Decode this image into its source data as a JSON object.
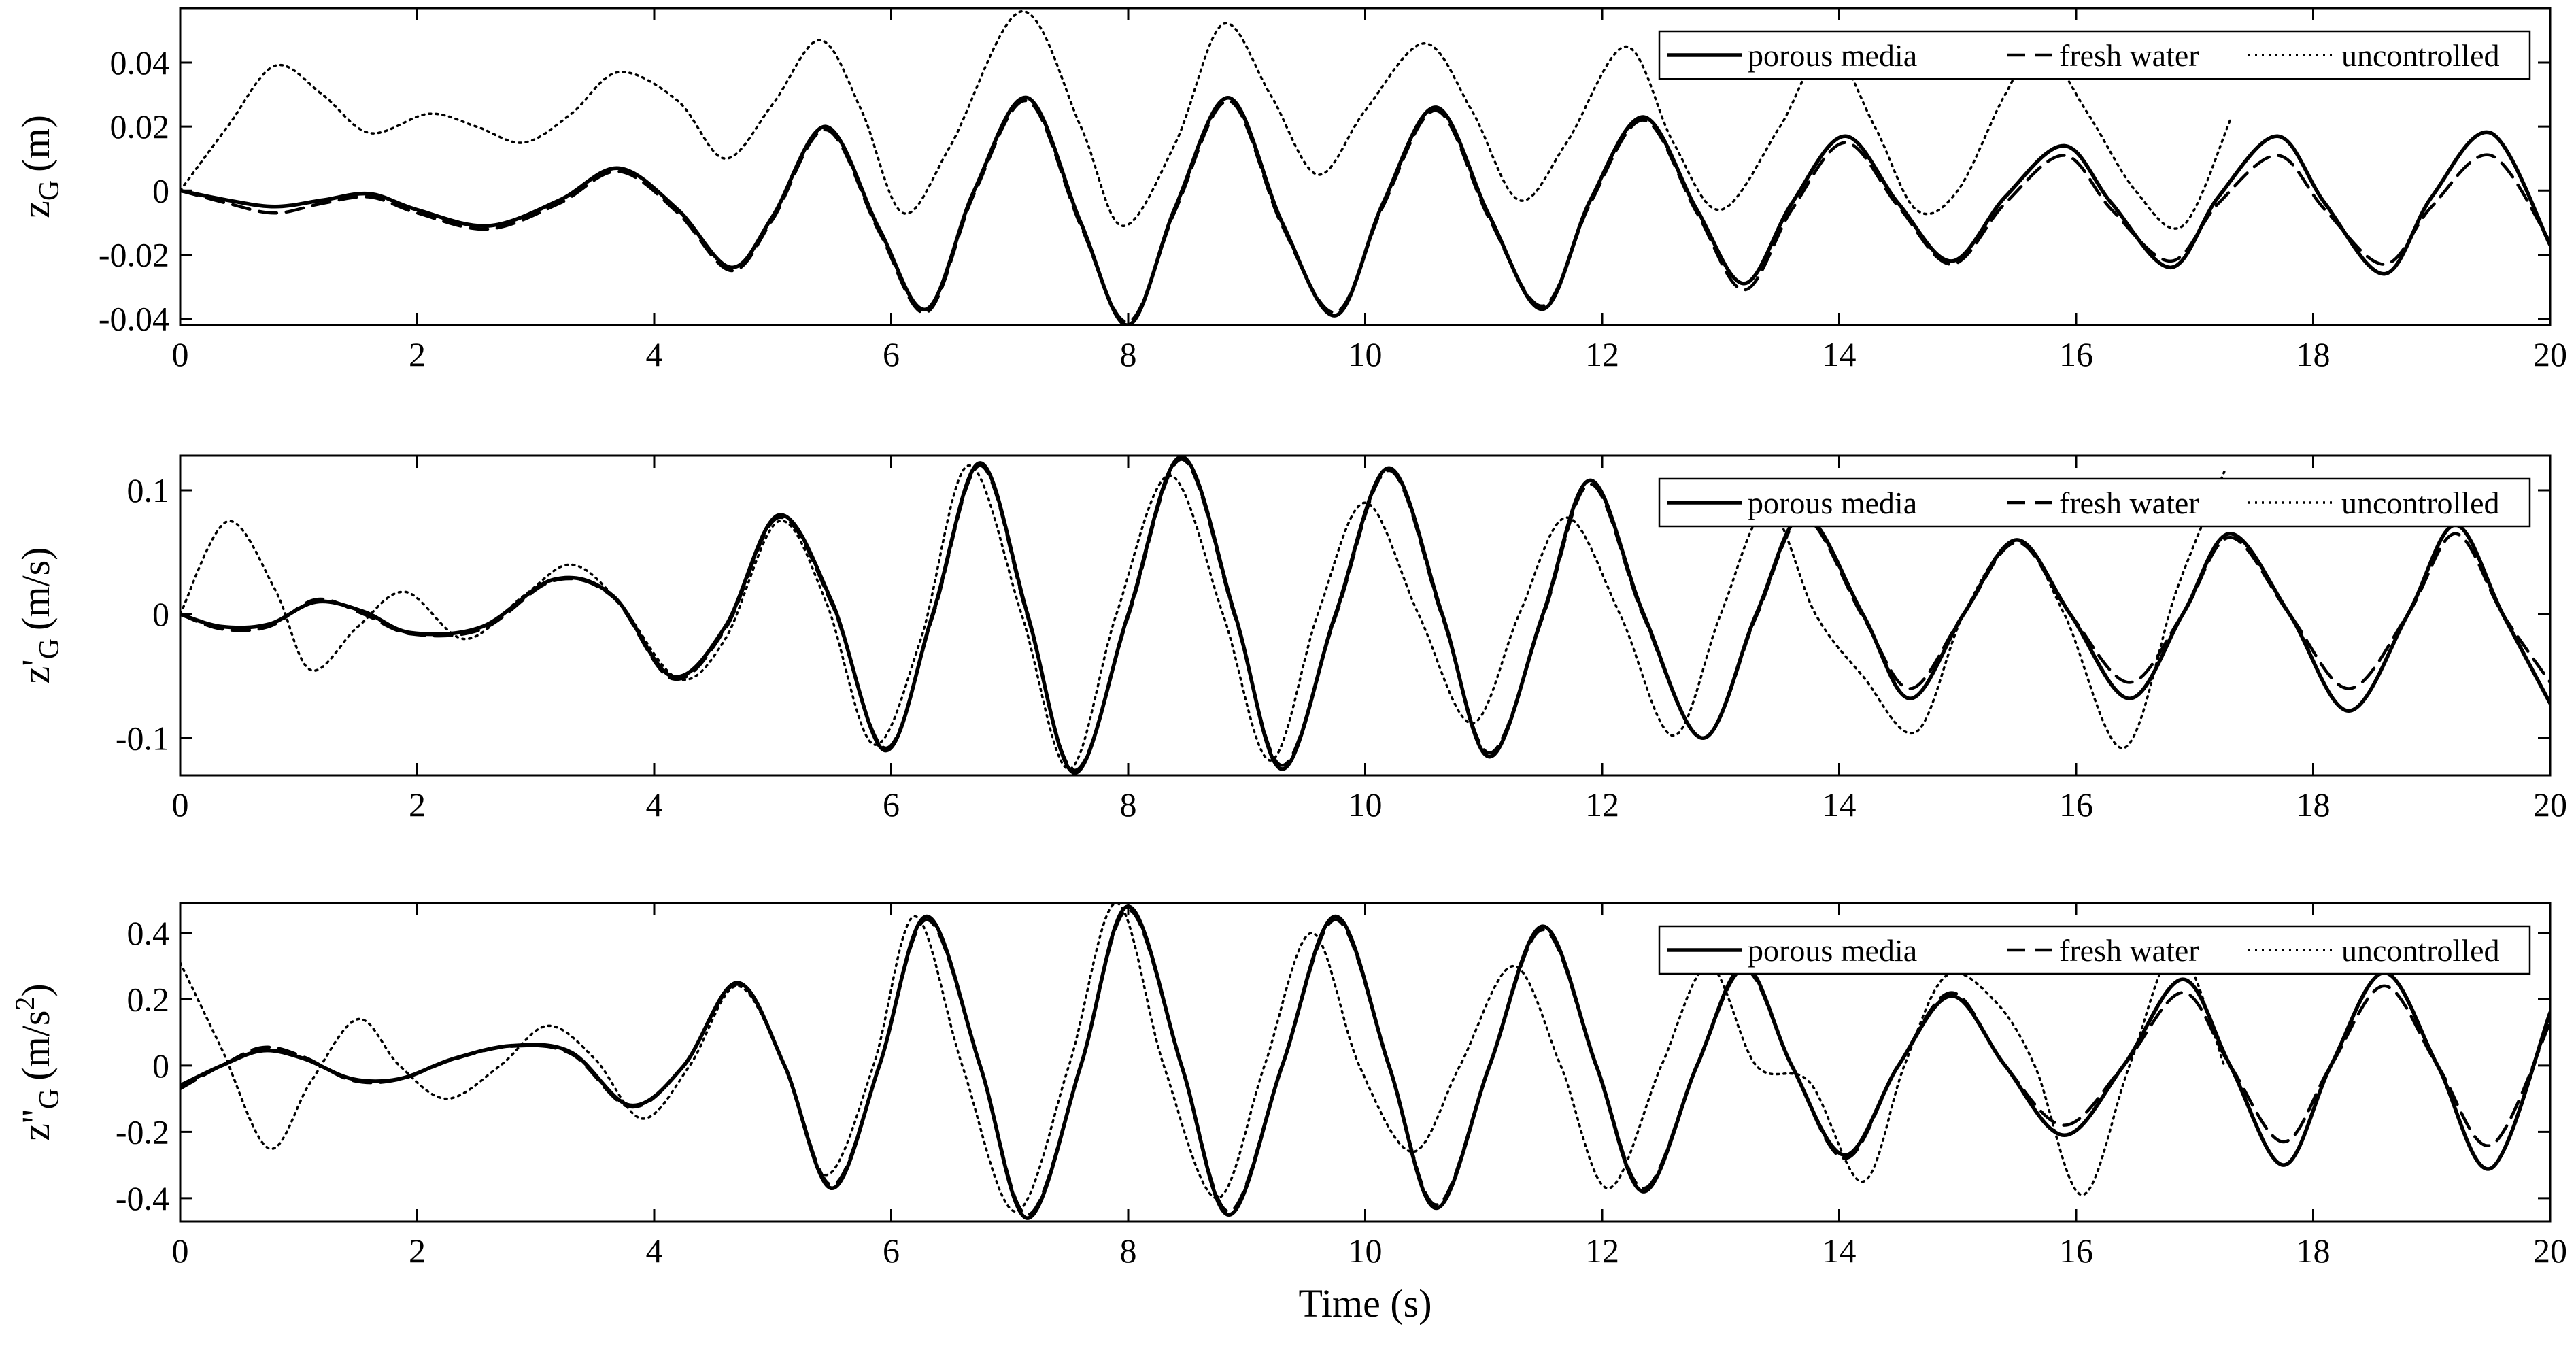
{
  "chart_data": [
    {
      "type": "line",
      "xlabel": "",
      "ylabel": {
        "base": "z",
        "prime": "",
        "sub": "G",
        "unit": "(m)",
        "sup": ""
      },
      "xlim": [
        0,
        20
      ],
      "ylim": [
        -0.042,
        0.057
      ],
      "xticks": [
        0,
        2,
        4,
        6,
        8,
        10,
        12,
        14,
        16,
        18,
        20
      ],
      "xtick_labels": [
        "0",
        "2",
        "4",
        "6",
        "8",
        "10",
        "12",
        "14",
        "16",
        "18",
        "20"
      ],
      "yticks": [
        -0.04,
        -0.02,
        0,
        0.02,
        0.04
      ],
      "ytick_labels": [
        "-0.04",
        "-0.02",
        "0",
        "0.02",
        "0.04"
      ],
      "legend": {
        "placement": "top-right"
      },
      "series": [
        {
          "name": "porous media",
          "style": "solid",
          "x": [
            0,
            0.4,
            0.8,
            1.2,
            1.6,
            2.0,
            2.6,
            3.2,
            3.7,
            4.2,
            4.65,
            5.0,
            5.45,
            5.9,
            6.3,
            6.7,
            7.15,
            7.6,
            8.0,
            8.4,
            8.85,
            9.3,
            9.75,
            10.15,
            10.6,
            11.05,
            11.5,
            11.9,
            12.35,
            12.8,
            13.2,
            13.6,
            14.05,
            14.5,
            14.95,
            15.4,
            15.9,
            16.3,
            16.8,
            17.2,
            17.7,
            18.1,
            18.6,
            19.0,
            19.5,
            20.0
          ],
          "y": [
            0,
            -0.003,
            -0.005,
            -0.003,
            -0.001,
            -0.006,
            -0.011,
            -0.003,
            0.007,
            -0.006,
            -0.024,
            -0.008,
            0.02,
            -0.012,
            -0.037,
            0.0,
            0.029,
            -0.01,
            -0.042,
            -0.005,
            0.029,
            -0.01,
            -0.039,
            -0.004,
            0.026,
            -0.008,
            -0.037,
            -0.003,
            0.023,
            -0.006,
            -0.029,
            -0.004,
            0.017,
            -0.004,
            -0.022,
            -0.002,
            0.014,
            -0.004,
            -0.024,
            -0.002,
            0.017,
            -0.004,
            -0.026,
            -0.002,
            0.018,
            -0.017
          ]
        },
        {
          "name": "fresh water",
          "style": "dashed",
          "x": [
            0,
            0.4,
            0.8,
            1.2,
            1.6,
            2.0,
            2.6,
            3.2,
            3.7,
            4.2,
            4.65,
            5.0,
            5.45,
            5.9,
            6.3,
            6.7,
            7.15,
            7.6,
            8.0,
            8.4,
            8.85,
            9.3,
            9.75,
            10.15,
            10.6,
            11.05,
            11.5,
            11.9,
            12.35,
            12.8,
            13.2,
            13.6,
            14.05,
            14.5,
            14.95,
            15.4,
            15.9,
            16.3,
            16.8,
            17.2,
            17.7,
            18.1,
            18.6,
            19.0,
            19.5,
            20.0
          ],
          "y": [
            0,
            -0.004,
            -0.007,
            -0.004,
            -0.002,
            -0.007,
            -0.012,
            -0.004,
            0.006,
            -0.007,
            -0.025,
            -0.009,
            0.019,
            -0.013,
            -0.038,
            -0.001,
            0.028,
            -0.011,
            -0.041,
            -0.006,
            0.028,
            -0.011,
            -0.038,
            -0.005,
            0.025,
            -0.009,
            -0.036,
            -0.004,
            0.022,
            -0.007,
            -0.031,
            -0.006,
            0.015,
            -0.005,
            -0.023,
            -0.004,
            0.011,
            -0.006,
            -0.022,
            -0.004,
            0.011,
            -0.006,
            -0.023,
            -0.005,
            0.011,
            -0.016
          ]
        },
        {
          "name": "uncontrolled",
          "style": "dotted",
          "x": [
            0,
            0.4,
            0.8,
            1.2,
            1.6,
            2.1,
            2.5,
            2.9,
            3.3,
            3.7,
            4.2,
            4.6,
            5.0,
            5.4,
            5.75,
            6.1,
            6.5,
            7.1,
            7.6,
            7.95,
            8.4,
            8.8,
            9.2,
            9.6,
            10.0,
            10.5,
            10.9,
            11.3,
            11.7,
            12.2,
            12.6,
            13.0,
            13.5,
            13.9,
            14.3,
            14.65,
            15.0,
            15.4,
            15.7,
            16.1,
            16.5,
            16.9,
            17.3
          ],
          "y": [
            0,
            0.02,
            0.039,
            0.03,
            0.018,
            0.024,
            0.02,
            0.015,
            0.024,
            0.037,
            0.028,
            0.01,
            0.027,
            0.047,
            0.025,
            -0.007,
            0.014,
            0.056,
            0.02,
            -0.011,
            0.015,
            0.052,
            0.03,
            0.005,
            0.025,
            0.046,
            0.025,
            -0.003,
            0.015,
            0.045,
            0.015,
            -0.006,
            0.02,
            0.045,
            0.02,
            -0.006,
            0.0,
            0.03,
            0.045,
            0.024,
            0.0,
            -0.011,
            0.022
          ]
        }
      ]
    },
    {
      "type": "line",
      "xlabel": "",
      "ylabel": {
        "base": "z",
        "prime": "'",
        "sub": "G",
        "unit": "(m/s)",
        "sup": ""
      },
      "xlim": [
        0,
        20
      ],
      "ylim": [
        -0.13,
        0.128
      ],
      "xticks": [
        0,
        2,
        4,
        6,
        8,
        10,
        12,
        14,
        16,
        18,
        20
      ],
      "xtick_labels": [
        "0",
        "2",
        "4",
        "6",
        "8",
        "10",
        "12",
        "14",
        "16",
        "18",
        "20"
      ],
      "yticks": [
        -0.1,
        0,
        0.1
      ],
      "ytick_labels": [
        "-0.1",
        "0",
        "0.1"
      ],
      "legend": {
        "placement": "top-right"
      },
      "series": [
        {
          "name": "porous media",
          "style": "solid",
          "x": [
            0,
            0.35,
            0.75,
            1.15,
            1.55,
            1.95,
            2.55,
            3.15,
            3.65,
            4.15,
            4.6,
            5.05,
            5.5,
            5.95,
            6.35,
            6.75,
            7.15,
            7.55,
            8.0,
            8.45,
            8.9,
            9.3,
            9.75,
            10.2,
            10.65,
            11.05,
            11.5,
            11.9,
            12.35,
            12.85,
            13.3,
            13.7,
            14.2,
            14.6,
            15.05,
            15.5,
            15.95,
            16.45,
            16.9,
            17.3,
            17.8,
            18.3,
            18.8,
            19.2,
            19.6,
            20.0
          ],
          "y": [
            0,
            -0.01,
            -0.008,
            0.01,
            0.002,
            -0.015,
            -0.01,
            0.028,
            0.015,
            -0.05,
            -0.01,
            0.08,
            0.01,
            -0.11,
            0.0,
            0.122,
            0.0,
            -0.128,
            0.0,
            0.127,
            0.0,
            -0.125,
            0.0,
            0.118,
            0.0,
            -0.115,
            0.0,
            0.108,
            0.0,
            -0.1,
            0.0,
            0.08,
            0.0,
            -0.068,
            0.0,
            0.06,
            0.0,
            -0.068,
            0.0,
            0.065,
            0.0,
            -0.078,
            0.0,
            0.072,
            0.0,
            -0.072
          ]
        },
        {
          "name": "fresh water",
          "style": "dashed",
          "x": [
            0,
            0.35,
            0.75,
            1.15,
            1.55,
            1.95,
            2.55,
            3.15,
            3.65,
            4.15,
            4.6,
            5.05,
            5.5,
            5.95,
            6.35,
            6.75,
            7.15,
            7.55,
            8.0,
            8.45,
            8.9,
            9.3,
            9.75,
            10.2,
            10.65,
            11.05,
            11.5,
            11.9,
            12.35,
            12.85,
            13.3,
            13.7,
            14.2,
            14.6,
            15.05,
            15.5,
            15.95,
            16.45,
            16.9,
            17.3,
            17.8,
            18.3,
            18.8,
            19.2,
            19.6,
            20.0
          ],
          "y": [
            0,
            -0.012,
            -0.01,
            0.012,
            0.0,
            -0.016,
            -0.012,
            0.027,
            0.014,
            -0.052,
            -0.012,
            0.078,
            0.008,
            -0.108,
            -0.002,
            0.12,
            -0.002,
            -0.126,
            -0.002,
            0.125,
            -0.002,
            -0.122,
            -0.002,
            0.116,
            -0.002,
            -0.112,
            -0.002,
            0.105,
            -0.002,
            -0.1,
            -0.002,
            0.078,
            -0.002,
            -0.06,
            0.0,
            0.058,
            0.0,
            -0.055,
            0.0,
            0.062,
            0.0,
            -0.06,
            0.0,
            0.065,
            0.0,
            -0.055
          ]
        },
        {
          "name": "uncontrolled",
          "style": "dotted",
          "x": [
            0,
            0.4,
            0.8,
            1.1,
            1.5,
            1.9,
            2.4,
            2.9,
            3.3,
            3.7,
            4.2,
            4.6,
            5.05,
            5.45,
            5.85,
            6.25,
            6.65,
            7.1,
            7.5,
            7.9,
            8.35,
            8.8,
            9.2,
            9.6,
            10.0,
            10.45,
            10.9,
            11.3,
            11.7,
            12.15,
            12.6,
            13.0,
            13.4,
            13.8,
            14.2,
            14.65,
            15.05,
            15.5,
            15.9,
            16.4,
            16.85,
            17.25
          ],
          "y": [
            0,
            0.075,
            0.02,
            -0.045,
            -0.01,
            0.018,
            -0.02,
            0.015,
            0.04,
            0.01,
            -0.052,
            -0.02,
            0.075,
            0.01,
            -0.105,
            -0.02,
            0.12,
            0.0,
            -0.125,
            0.0,
            0.112,
            0.0,
            -0.118,
            0.0,
            0.09,
            0.0,
            -0.088,
            0.0,
            0.078,
            0.0,
            -0.098,
            0.0,
            0.085,
            0.0,
            -0.05,
            -0.095,
            0.0,
            0.06,
            0.0,
            -0.108,
            0.02,
            0.115
          ]
        }
      ]
    },
    {
      "type": "line",
      "xlabel": "Time (s)",
      "ylabel": {
        "base": "z",
        "prime": "''",
        "sub": "G",
        "unit": "(m/s",
        "sup": "2",
        "unit_end": ")"
      },
      "xlim": [
        0,
        20
      ],
      "ylim": [
        -0.47,
        0.49
      ],
      "xticks": [
        0,
        2,
        4,
        6,
        8,
        10,
        12,
        14,
        16,
        18,
        20
      ],
      "xtick_labels": [
        "0",
        "2",
        "4",
        "6",
        "8",
        "10",
        "12",
        "14",
        "16",
        "18",
        "20"
      ],
      "yticks": [
        -0.4,
        -0.2,
        0,
        0.2,
        0.4
      ],
      "ytick_labels": [
        "-0.4",
        "-0.2",
        "0",
        "0.2",
        "0.4"
      ],
      "legend": {
        "placement": "top-right"
      },
      "series": [
        {
          "name": "porous media",
          "style": "solid",
          "x": [
            0,
            0.35,
            0.7,
            1.05,
            1.45,
            1.85,
            2.3,
            2.8,
            3.3,
            3.8,
            4.25,
            4.7,
            5.1,
            5.5,
            5.9,
            6.3,
            6.75,
            7.15,
            7.6,
            8.0,
            8.45,
            8.85,
            9.3,
            9.75,
            10.2,
            10.6,
            11.05,
            11.5,
            11.95,
            12.35,
            12.8,
            13.2,
            13.6,
            14.05,
            14.5,
            14.95,
            15.4,
            15.9,
            16.4,
            16.9,
            17.3,
            17.75,
            18.15,
            18.6,
            19.05,
            19.5,
            20.0
          ],
          "y": [
            -0.06,
            0.0,
            0.045,
            0.02,
            -0.04,
            -0.04,
            0.02,
            0.06,
            0.04,
            -0.12,
            0.0,
            0.25,
            0.0,
            -0.37,
            0.0,
            0.45,
            0.0,
            -0.46,
            0.0,
            0.48,
            0.0,
            -0.45,
            0.0,
            0.45,
            0.0,
            -0.43,
            0.0,
            0.42,
            0.0,
            -0.38,
            0.0,
            0.3,
            0.0,
            -0.27,
            0.0,
            0.21,
            0.0,
            -0.21,
            0.0,
            0.26,
            0.0,
            -0.3,
            0.0,
            0.28,
            0.0,
            -0.31,
            0.16
          ]
        },
        {
          "name": "fresh water",
          "style": "dashed",
          "x": [
            0,
            0.35,
            0.7,
            1.05,
            1.45,
            1.85,
            2.3,
            2.8,
            3.3,
            3.8,
            4.25,
            4.7,
            5.1,
            5.5,
            5.9,
            6.3,
            6.75,
            7.15,
            7.6,
            8.0,
            8.45,
            8.85,
            9.3,
            9.75,
            10.2,
            10.6,
            11.05,
            11.5,
            11.95,
            12.35,
            12.8,
            13.2,
            13.6,
            14.05,
            14.5,
            14.95,
            15.4,
            15.9,
            16.4,
            16.9,
            17.3,
            17.75,
            18.15,
            18.6,
            19.05,
            19.5,
            20.0
          ],
          "y": [
            -0.07,
            0.0,
            0.055,
            0.025,
            -0.045,
            -0.042,
            0.018,
            0.058,
            0.035,
            -0.125,
            0.0,
            0.245,
            0.0,
            -0.36,
            0.0,
            0.44,
            0.0,
            -0.45,
            0.0,
            0.47,
            0.0,
            -0.44,
            0.0,
            0.44,
            0.0,
            -0.42,
            0.0,
            0.41,
            0.0,
            -0.37,
            0.0,
            0.29,
            0.0,
            -0.28,
            0.0,
            0.22,
            0.0,
            -0.18,
            0.0,
            0.22,
            0.0,
            -0.23,
            0.0,
            0.24,
            0.0,
            -0.24,
            0.13
          ]
        },
        {
          "name": "uncontrolled",
          "style": "dotted",
          "x": [
            0,
            0.35,
            0.75,
            1.1,
            1.5,
            1.85,
            2.25,
            2.7,
            3.1,
            3.5,
            3.9,
            4.3,
            4.7,
            5.1,
            5.45,
            5.85,
            6.2,
            6.6,
            7.05,
            7.5,
            7.9,
            8.3,
            8.75,
            9.15,
            9.55,
            9.95,
            10.4,
            10.8,
            11.25,
            11.65,
            12.05,
            12.5,
            12.9,
            13.3,
            13.75,
            14.2,
            14.55,
            14.9,
            15.3,
            15.65,
            16.05,
            16.45,
            16.85,
            17.25
          ],
          "y": [
            0.31,
            0.05,
            -0.25,
            -0.05,
            0.14,
            0.0,
            -0.1,
            0.0,
            0.12,
            0.02,
            -0.16,
            0.0,
            0.24,
            0.0,
            -0.33,
            0.0,
            0.45,
            0.0,
            -0.44,
            0.0,
            0.49,
            0.0,
            -0.4,
            0.0,
            0.4,
            0.0,
            -0.26,
            0.0,
            0.3,
            0.0,
            -0.37,
            0.0,
            0.3,
            0.0,
            -0.05,
            -0.35,
            0.0,
            0.27,
            0.2,
            0.0,
            -0.39,
            0.0,
            0.35,
            0.0
          ]
        }
      ]
    }
  ]
}
